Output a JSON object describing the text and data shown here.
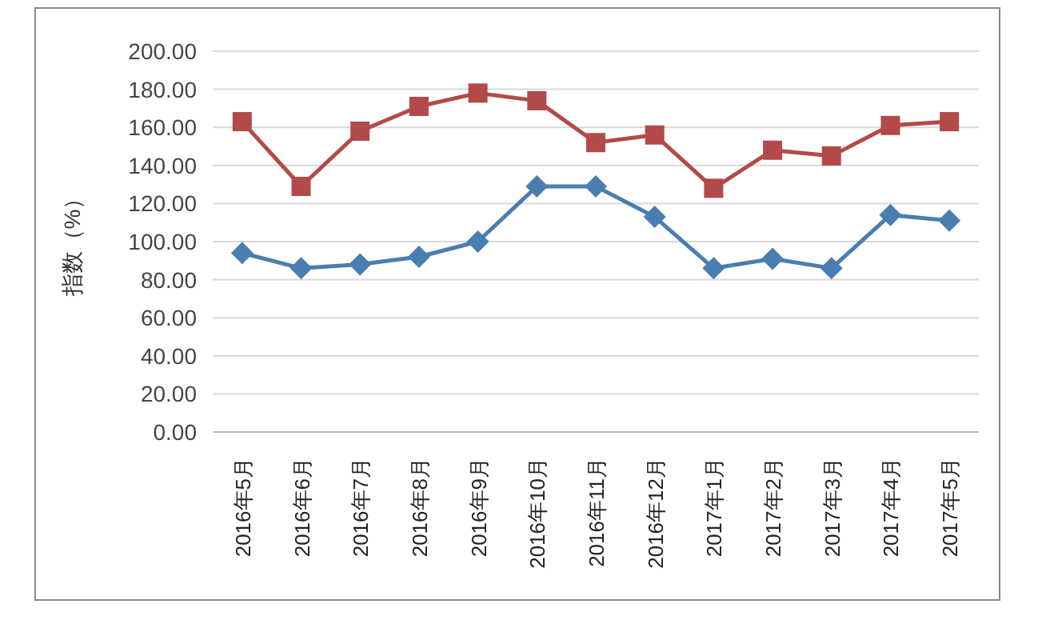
{
  "chart_data": {
    "type": "line",
    "ylabel": "指数（%）",
    "categories": [
      "2016年5月",
      "2016年6月",
      "2016年7月",
      "2016年8月",
      "2016年9月",
      "2016年10月",
      "2016年11月",
      "2016年12月",
      "2017年1月",
      "2017年2月",
      "2017年3月",
      "2017年4月",
      "2017年5月"
    ],
    "series": [
      {
        "color": "#4a7eb0",
        "marker": "diamond",
        "values": [
          94,
          86,
          88,
          92,
          100,
          129,
          129,
          113,
          86,
          91,
          86,
          114,
          111
        ]
      },
      {
        "color": "#b24a4a",
        "marker": "square",
        "values": [
          163,
          129,
          158,
          171,
          178,
          174,
          152,
          156,
          128,
          148,
          145,
          161,
          163
        ]
      }
    ],
    "ylim": [
      0,
      200
    ],
    "yticks": [
      {
        "value": 0,
        "label": "0.00"
      },
      {
        "value": 20,
        "label": "20.00"
      },
      {
        "value": 40,
        "label": "40.00"
      },
      {
        "value": 60,
        "label": "60.00"
      },
      {
        "value": 80,
        "label": "80.00"
      },
      {
        "value": 100,
        "label": "100.00"
      },
      {
        "value": 120,
        "label": "120.00"
      },
      {
        "value": 140,
        "label": "140.00"
      },
      {
        "value": 160,
        "label": "160.00"
      },
      {
        "value": 180,
        "label": "180.00"
      },
      {
        "value": 200,
        "label": "200.00"
      }
    ],
    "grid": "y"
  }
}
